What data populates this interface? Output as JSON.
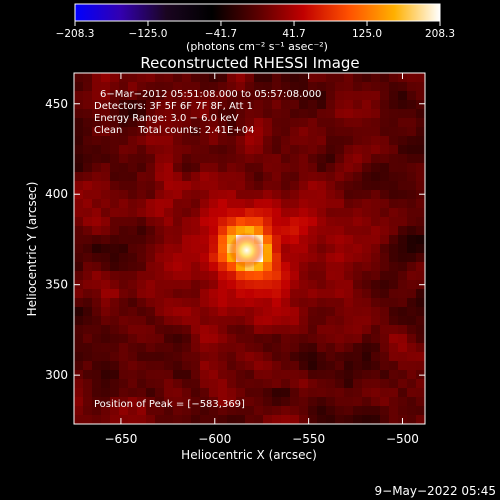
{
  "chart_data": {
    "type": "heatmap",
    "title": "Reconstructed RHESSI Image",
    "xlabel": "Heliocentric X (arcsec)",
    "ylabel": "Heliocentric Y (arcsec)",
    "xlim": [
      -675,
      -488
    ],
    "ylim": [
      273,
      467
    ],
    "x_ticks": [
      -650,
      -600,
      -550,
      -500
    ],
    "y_ticks": [
      300,
      350,
      400,
      450
    ],
    "x_tick_labels": [
      "−650",
      "−600",
      "−550",
      "−500"
    ],
    "y_tick_labels": [
      "300",
      "350",
      "400",
      "450"
    ],
    "colorbar": {
      "range": [
        -208.3,
        208.3
      ],
      "ticks": [
        -208.3,
        -125.0,
        -41.7,
        41.7,
        125.0,
        208.3
      ],
      "tick_labels": [
        "−208.3",
        "−125.0",
        "−41.7",
        "41.7",
        "125.0",
        "208.3"
      ],
      "unit_label": "(photons cm⁻² s⁻¹ asec⁻²)",
      "colors": [
        "#0000ff",
        "#3300b0",
        "#1a0520",
        "#000000",
        "#5a0000",
        "#c00000",
        "#ff5000",
        "#ffb000",
        "#ffffff"
      ]
    },
    "peak": {
      "x": -583,
      "y": 369,
      "value": 208.3
    },
    "annotations": [
      "6−Mar−2012 05:51:08.000 to 05:57:08.000",
      "Detectors: 3F 5F 6F 7F 8F, Att 1",
      "Energy Range: 3.0 − 6.0 keV",
      "Clean     Total counts: 2.41E+04",
      "Position of Peak = [−583,369]"
    ],
    "footer": "9−May−2022 05:45"
  }
}
